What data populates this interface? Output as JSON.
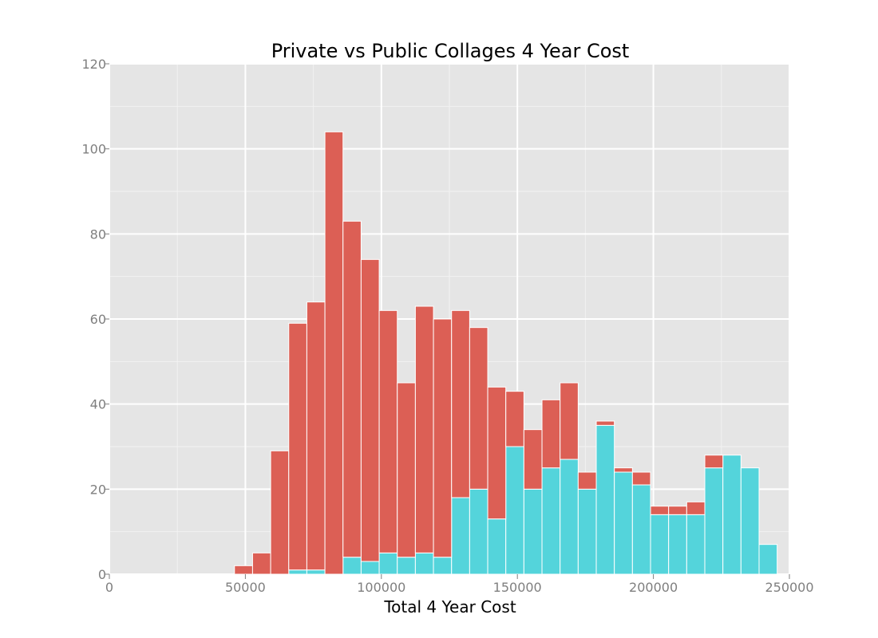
{
  "chart_data": {
    "type": "bar",
    "stacked": true,
    "title": "Private vs Public Collages 4 Year Cost",
    "xlabel": "Total 4 Year Cost",
    "ylabel": "",
    "xlim": [
      0,
      250000
    ],
    "ylim": [
      0,
      120
    ],
    "xticks": [
      0,
      50000,
      100000,
      150000,
      200000,
      250000
    ],
    "yticks": [
      0,
      20,
      40,
      60,
      80,
      100,
      120
    ],
    "grid": true,
    "bin_edges": [
      46000,
      52650,
      59300,
      65950,
      72600,
      79250,
      85900,
      92550,
      99200,
      105850,
      112500,
      119150,
      125800,
      132450,
      139100,
      145750,
      152400,
      159050,
      165700,
      172350,
      179000,
      185650,
      192300,
      198950,
      205600,
      212250,
      218900,
      225550,
      232200,
      238850,
      245500
    ],
    "series": [
      {
        "color": "#54d4db",
        "values": [
          0,
          0,
          0,
          1,
          1,
          0,
          4,
          3,
          5,
          4,
          5,
          4,
          18,
          20,
          13,
          30,
          20,
          25,
          27,
          20,
          35,
          24,
          21,
          14,
          14,
          14,
          25,
          28,
          25,
          7
        ]
      },
      {
        "color": "#dc5f55",
        "values": [
          2,
          5,
          29,
          58,
          63,
          104,
          79,
          71,
          57,
          41,
          58,
          56,
          44,
          38,
          31,
          13,
          14,
          16,
          18,
          4,
          1,
          1,
          3,
          2,
          2,
          3,
          3,
          0,
          0,
          0
        ]
      }
    ]
  }
}
